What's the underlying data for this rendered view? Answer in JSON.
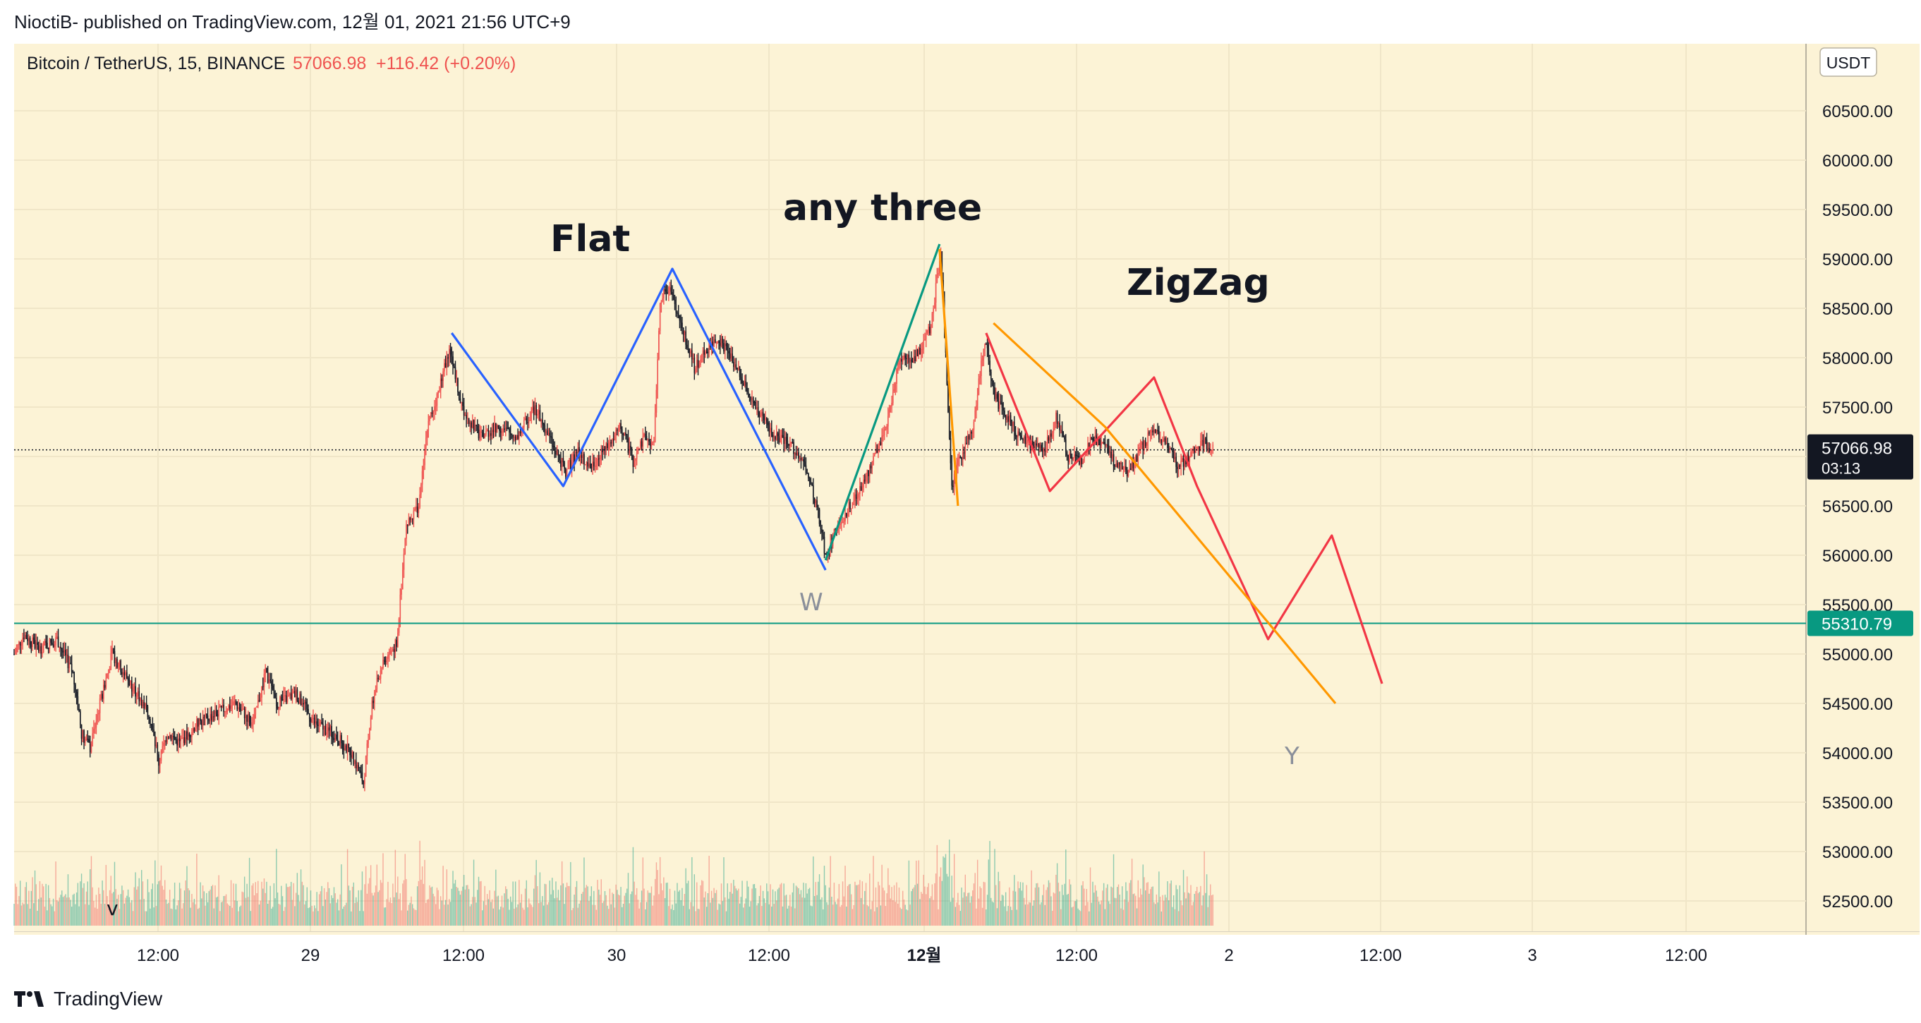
{
  "header": {
    "published_by": "NioctiB- published on TradingView.com, 12월 01, 2021 21:56 UTC+9"
  },
  "footer": {
    "brand": "TradingView",
    "logo_icon": "tradingview-logo-icon"
  },
  "legend": {
    "symbol": "Bitcoin / TetherUS, 15, BINANCE",
    "last_price": "57066.98",
    "change": "+116.42 (+0.20%)",
    "currency": "USDT"
  },
  "colors": {
    "background": "#fcf3d6",
    "up": "#ef5350",
    "down": "#131722",
    "flat_wave": "#2962ff",
    "any_three_wave": "#089981",
    "zigzag_wave": "#f23645",
    "orange_wave": "#ff9800",
    "support_line": "#089981"
  },
  "chart_data": {
    "type": "candlestick",
    "x_ticks": [
      "12:00",
      "29",
      "12:00",
      "30",
      "12:00",
      "12월",
      "12:00",
      "2",
      "12:00",
      "3",
      "12:00"
    ],
    "y_ticks": [
      60500,
      60000,
      59500,
      59000,
      58500,
      58000,
      57500,
      57000,
      56500,
      56000,
      55500,
      55000,
      54500,
      54000,
      53500,
      53000,
      52500
    ],
    "y_range": [
      52200,
      61200
    ],
    "price_line": {
      "value": 57066.98,
      "label": "57066.98",
      "countdown": "03:13"
    },
    "support_line": {
      "value": 55310.79,
      "label": "55310.79"
    },
    "annotations": [
      {
        "text": "Flat"
      },
      {
        "text": "any three"
      },
      {
        "text": "ZigZag"
      },
      {
        "text": "W"
      },
      {
        "text": "Y"
      },
      {
        "text": "v"
      }
    ],
    "price_path": [
      [
        0,
        55000
      ],
      [
        8,
        55200
      ],
      [
        20,
        55050
      ],
      [
        35,
        55150
      ],
      [
        48,
        54800
      ],
      [
        55,
        54200
      ],
      [
        62,
        54050
      ],
      [
        70,
        54500
      ],
      [
        80,
        55000
      ],
      [
        95,
        54700
      ],
      [
        110,
        54400
      ],
      [
        118,
        53900
      ],
      [
        125,
        54200
      ],
      [
        135,
        54100
      ],
      [
        150,
        54300
      ],
      [
        165,
        54400
      ],
      [
        180,
        54500
      ],
      [
        195,
        54300
      ],
      [
        205,
        54800
      ],
      [
        215,
        54500
      ],
      [
        230,
        54600
      ],
      [
        245,
        54300
      ],
      [
        260,
        54200
      ],
      [
        275,
        54000
      ],
      [
        285,
        53700
      ],
      [
        292,
        54500
      ],
      [
        300,
        54900
      ],
      [
        312,
        55100
      ],
      [
        320,
        56300
      ],
      [
        330,
        56500
      ],
      [
        337,
        57300
      ],
      [
        345,
        57600
      ],
      [
        355,
        58100
      ],
      [
        365,
        57500
      ],
      [
        380,
        57200
      ],
      [
        395,
        57300
      ],
      [
        410,
        57200
      ],
      [
        425,
        57500
      ],
      [
        440,
        57100
      ],
      [
        450,
        56850
      ],
      [
        460,
        57050
      ],
      [
        470,
        56900
      ],
      [
        485,
        57100
      ],
      [
        495,
        57300
      ],
      [
        505,
        56950
      ],
      [
        515,
        57200
      ],
      [
        522,
        57100
      ],
      [
        527,
        58600
      ],
      [
        535,
        58700
      ],
      [
        545,
        58300
      ],
      [
        555,
        57900
      ],
      [
        565,
        58100
      ],
      [
        575,
        58200
      ],
      [
        590,
        57900
      ],
      [
        605,
        57500
      ],
      [
        620,
        57200
      ],
      [
        635,
        57100
      ],
      [
        645,
        56900
      ],
      [
        655,
        56500
      ],
      [
        662,
        56000
      ],
      [
        672,
        56300
      ],
      [
        682,
        56500
      ],
      [
        692,
        56700
      ],
      [
        702,
        57000
      ],
      [
        712,
        57300
      ],
      [
        722,
        58000
      ],
      [
        735,
        58000
      ],
      [
        748,
        58300
      ],
      [
        756,
        59100
      ],
      [
        760,
        58000
      ],
      [
        765,
        56700
      ],
      [
        772,
        57000
      ],
      [
        782,
        57300
      ],
      [
        792,
        58200
      ],
      [
        800,
        57600
      ],
      [
        810,
        57400
      ],
      [
        820,
        57200
      ],
      [
        830,
        57100
      ],
      [
        840,
        57050
      ],
      [
        850,
        57400
      ],
      [
        860,
        57000
      ],
      [
        870,
        56950
      ],
      [
        880,
        57200
      ],
      [
        890,
        57100
      ],
      [
        900,
        56900
      ],
      [
        910,
        56850
      ],
      [
        920,
        57100
      ],
      [
        930,
        57300
      ],
      [
        940,
        57100
      ],
      [
        950,
        56900
      ],
      [
        960,
        57000
      ],
      [
        970,
        57150
      ],
      [
        978,
        57067
      ]
    ],
    "wave_lines": [
      {
        "name": "flat",
        "points": [
          [
            357,
            58250
          ],
          [
            448,
            56700
          ],
          [
            537,
            58900
          ],
          [
            662,
            55850
          ]
        ]
      },
      {
        "name": "any-three",
        "points": [
          [
            662,
            55950
          ],
          [
            755,
            59150
          ]
        ]
      },
      {
        "name": "zigzag",
        "points": [
          [
            793,
            58250
          ],
          [
            845,
            56650
          ],
          [
            930,
            57800
          ],
          [
            965,
            56700
          ],
          [
            1023,
            55150
          ],
          [
            1075,
            56200
          ],
          [
            1116,
            54700
          ]
        ]
      },
      {
        "name": "orange",
        "points": [
          [
            755,
            59100
          ],
          [
            770,
            56500
          ]
        ]
      },
      {
        "name": "orange-2",
        "points": [
          [
            799,
            58350
          ],
          [
            890,
            57300
          ],
          [
            1078,
            54500
          ]
        ]
      }
    ]
  }
}
